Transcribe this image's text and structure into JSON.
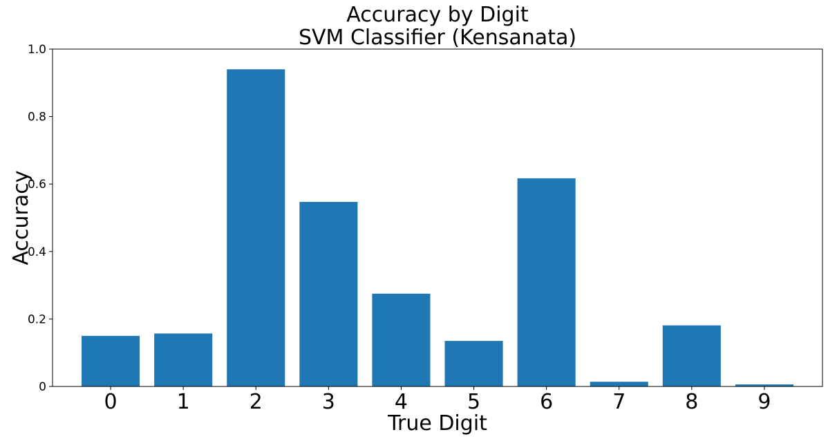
{
  "chart_data": {
    "type": "bar",
    "title": "Accuracy by Digit",
    "subtitle": "SVM Classifier (Kensanata)",
    "xlabel": "True Digit",
    "ylabel": "Accuracy",
    "categories": [
      "0",
      "1",
      "2",
      "3",
      "4",
      "5",
      "6",
      "7",
      "8",
      "9"
    ],
    "values": [
      0.15,
      0.157,
      0.94,
      0.547,
      0.275,
      0.135,
      0.617,
      0.014,
      0.181,
      0.006
    ],
    "ylim": [
      0,
      1.0
    ],
    "yticks": [
      "0",
      "0.2",
      "0.4",
      "0.6",
      "0.8",
      "1.0"
    ],
    "grid": false,
    "bar_color": "#1f77b4"
  }
}
